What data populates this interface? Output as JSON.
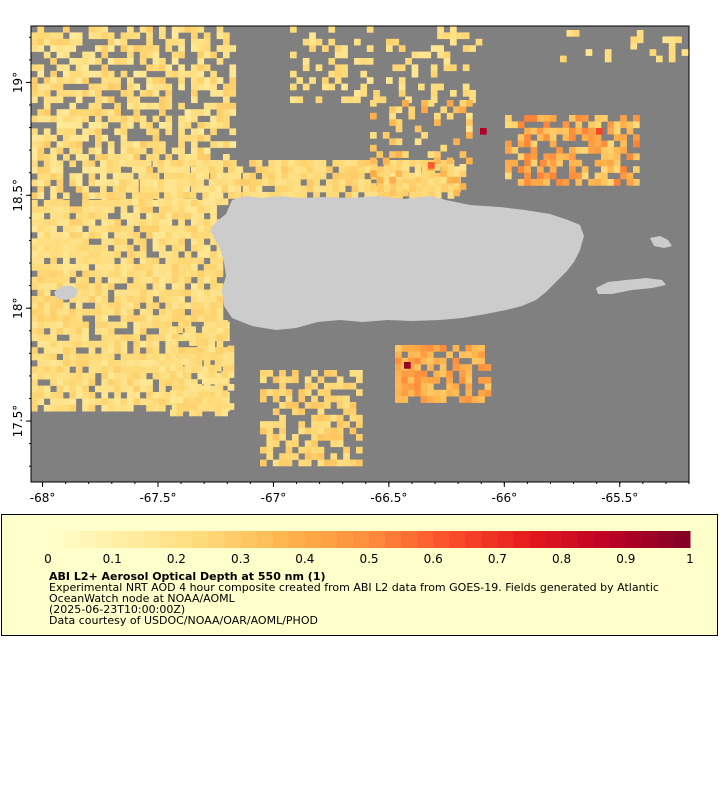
{
  "map": {
    "title": "ABI L2+ Aerosol Optical Depth at 550 nm (1)",
    "description_lines": [
      "Experimental NRT AOD 4 hour composite created from ABI L2 data from GOES-19. Fields generated by Atlantic OceanWatch node at NOAA/AOML",
      "(2025-06-23T10:00:00Z)",
      "Data courtesy of USDOC/NOAA/OAR/AOML/PHOD"
    ],
    "lon_range": [
      -68.05,
      -65.2
    ],
    "lat_range": [
      17.23,
      19.25
    ],
    "x_ticks": [
      {
        "value": -68,
        "label": "-68°"
      },
      {
        "value": -67.5,
        "label": "-67.5°"
      },
      {
        "value": -67,
        "label": "-67°"
      },
      {
        "value": -66.5,
        "label": "-66.5°"
      },
      {
        "value": -66,
        "label": "-66°"
      },
      {
        "value": -65.5,
        "label": "-65.5°"
      }
    ],
    "y_ticks": [
      {
        "value": 19,
        "label": "19°"
      },
      {
        "value": 18.5,
        "label": "18.5°"
      },
      {
        "value": 18,
        "label": "18°"
      },
      {
        "value": 17.5,
        "label": "17.5°"
      }
    ],
    "colors": {
      "no_data": "#808080",
      "land": "#cccccc",
      "legend_bg": "#ffffcc"
    }
  },
  "colorbar": {
    "range": [
      0,
      1
    ],
    "ticks": [
      {
        "value": 0,
        "label": "0"
      },
      {
        "value": 0.1,
        "label": "0.1"
      },
      {
        "value": 0.2,
        "label": "0.2"
      },
      {
        "value": 0.3,
        "label": "0.3"
      },
      {
        "value": 0.4,
        "label": "0.4"
      },
      {
        "value": 0.5,
        "label": "0.5"
      },
      {
        "value": 0.6,
        "label": "0.6"
      },
      {
        "value": 0.7,
        "label": "0.7"
      },
      {
        "value": 0.8,
        "label": "0.8"
      },
      {
        "value": 0.9,
        "label": "0.9"
      },
      {
        "value": 1,
        "label": "1"
      }
    ],
    "stops": [
      "#ffffcc",
      "#ffeda0",
      "#fed976",
      "#feb24c",
      "#fd8d3c",
      "#fc4e2a",
      "#e31a1c",
      "#bd0026",
      "#800026"
    ]
  }
}
